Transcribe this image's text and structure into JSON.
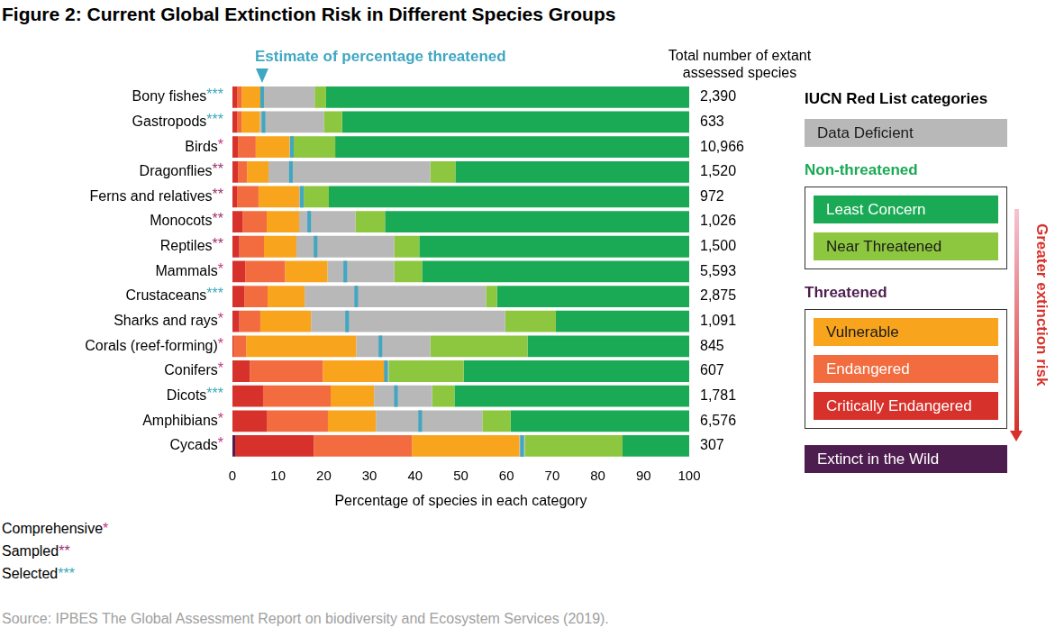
{
  "chart_data": {
    "type": "bar",
    "orientation": "horizontal",
    "stacked": true,
    "title": "Figure 2: Current Global Extinction Risk in Different Species Groups",
    "xlabel": "Percentage of species in each category",
    "categories": [
      "Bony fishes",
      "Gastropods",
      "Birds",
      "Dragonflies",
      "Ferns and relatives",
      "Monocots",
      "Reptiles",
      "Mammals",
      "Crustaceans",
      "Sharks and rays",
      "Corals (reef-forming)",
      "Conifers",
      "Dicots",
      "Amphibians",
      "Cycads"
    ],
    "assessment": [
      "***",
      "***",
      "*",
      "**",
      "**",
      "**",
      "**",
      "*",
      "***",
      "*",
      "*",
      "*",
      "***",
      "*",
      "*"
    ],
    "assessment_key": [
      {
        "label": "Comprehensive",
        "mark": "*",
        "color": "#c2357b"
      },
      {
        "label": "Sampled",
        "mark": "**",
        "color": "#9b2f6e"
      },
      {
        "label": "Selected",
        "mark": "***",
        "color": "#3aa6b9"
      }
    ],
    "series": [
      {
        "name": "Extinct in the Wild",
        "color": "#4e1d4f",
        "values": [
          0,
          0,
          0,
          0,
          0,
          0,
          0,
          0,
          0,
          0,
          0,
          0,
          0,
          0,
          0.6
        ]
      },
      {
        "name": "Critically Endangered",
        "color": "#d7312b",
        "values": [
          1,
          1,
          1.2,
          1.2,
          1,
          2.2,
          1.5,
          2.8,
          2.6,
          1.5,
          0.2,
          3.8,
          6.7,
          7.5,
          17.2
        ]
      },
      {
        "name": "Endangered",
        "color": "#f26c3f",
        "values": [
          1,
          1,
          3.9,
          2,
          4.7,
          5.3,
          5.4,
          8.7,
          5.1,
          4.6,
          2.8,
          16,
          14.8,
          13.4,
          21.5
        ]
      },
      {
        "name": "Vulnerable",
        "color": "#f8a51d",
        "values": [
          4.5,
          4,
          7.4,
          4.7,
          8.9,
          7.1,
          7.1,
          9.3,
          8.1,
          11.1,
          24.1,
          13.6,
          9.5,
          10.5,
          23.5
        ]
      },
      {
        "name": "Data Deficient",
        "color": "#b8b8b8",
        "values": [
          11.5,
          14,
          0.6,
          35.4,
          1,
          12.3,
          21.4,
          14.6,
          39.7,
          42.5,
          16.2,
          0.8,
          12.7,
          23.3,
          1.2
        ]
      },
      {
        "name": "Near Threatened",
        "color": "#8dc63f",
        "values": [
          2.5,
          4,
          9.4,
          5.5,
          5.5,
          6.5,
          5.5,
          6.1,
          2.4,
          11.1,
          21.3,
          16.4,
          4.9,
          6.2,
          21.4
        ]
      },
      {
        "name": "Least Concern",
        "color": "#1aaa55",
        "values": [
          79.5,
          76,
          77.5,
          51.2,
          78.9,
          66.6,
          59.1,
          58.5,
          42.1,
          29.2,
          35.4,
          49.4,
          51.4,
          39.1,
          14.6
        ]
      }
    ],
    "estimate_threatened": {
      "label": "Estimate of percentage threatened",
      "color": "#3fa7c3",
      "values": [
        6.5,
        6.8,
        13,
        12.8,
        15.2,
        16.8,
        18.2,
        24.7,
        27.1,
        25.1,
        32.4,
        33.6,
        35.8,
        41.1,
        63.4
      ]
    },
    "totals": {
      "label": "Total number of extant assessed species",
      "values": [
        2390,
        633,
        10966,
        1520,
        972,
        1026,
        1500,
        5593,
        2875,
        1091,
        845,
        607,
        1781,
        6576,
        307
      ],
      "value_labels": [
        "2,390",
        "633",
        "10,966",
        "1,520",
        "972",
        "1,026",
        "1,500",
        "5,593",
        "2,875",
        "1,091",
        "845",
        "607",
        "1,781",
        "6,576",
        "307"
      ]
    },
    "legend_title": "IUCN Red List categories",
    "legend_layout": [
      "Data Deficient",
      {
        "title": "Non-threatened",
        "color": "#1aaa55",
        "items": [
          "Least Concern",
          "Near Threatened"
        ]
      },
      {
        "title": "Threatened",
        "color": "#4e1d4f",
        "items": [
          "Vulnerable",
          "Endangered",
          "Critically Endangered"
        ]
      },
      "Extinct in the Wild"
    ],
    "risk_arrow": "Greater extinction risk",
    "source": "Source: IPBES The Global Assessment Report on biodiversity and Ecosystem Services (2019).",
    "xlim": [
      0,
      100
    ],
    "xticks": [
      0,
      10,
      20,
      30,
      40,
      50,
      60,
      70,
      80,
      90,
      100
    ],
    "grid": false,
    "legend": "right"
  }
}
